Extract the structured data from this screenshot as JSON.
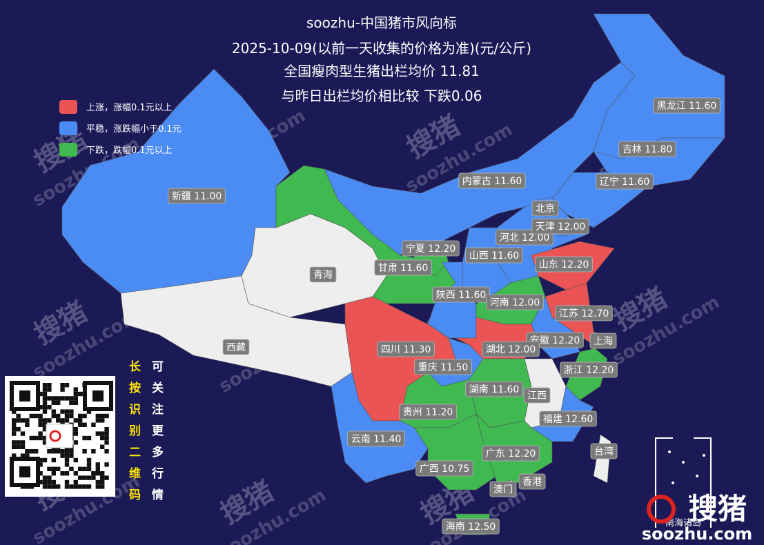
{
  "header": {
    "lines": [
      "soozhu-中国猪市风向标",
      "2025-10-09(以前一天收集的价格为准)(元/公斤)",
      "全国瘦肉型生猪出栏均价 11.81",
      "与昨日出栏均价相比较 下跌0.06"
    ]
  },
  "legend": {
    "items": [
      {
        "key": "up",
        "label": "上涨，涨幅0.1元以上",
        "color": "#ea5455"
      },
      {
        "key": "flat",
        "label": "平稳，涨跌幅小于0.1元",
        "color": "#4a8cf4"
      },
      {
        "key": "down",
        "label": "下跌，跌幅0.1元以上",
        "color": "#3fb950"
      }
    ]
  },
  "no_data_color": "#eeeeee",
  "provinces": [
    {
      "label": "新疆 11.00",
      "status": "flat"
    },
    {
      "label": "西藏",
      "status": "none"
    },
    {
      "label": "青海",
      "status": "none"
    },
    {
      "label": "甘肃 11.60",
      "status": "down"
    },
    {
      "label": "内蒙古 11.60",
      "status": "flat"
    },
    {
      "label": "黑龙江 11.60",
      "status": "flat"
    },
    {
      "label": "吉林 11.80",
      "status": "flat"
    },
    {
      "label": "辽宁 11.60",
      "status": "flat"
    },
    {
      "label": "河北 12.00",
      "status": "flat"
    },
    {
      "label": "北京",
      "status": "flat"
    },
    {
      "label": "天津 12.00",
      "status": "flat"
    },
    {
      "label": "山西 11.60",
      "status": "flat"
    },
    {
      "label": "宁夏 12.20",
      "status": "down"
    },
    {
      "label": "陕西 11.60",
      "status": "flat"
    },
    {
      "label": "山东 12.20",
      "status": "up"
    },
    {
      "label": "河南 12.00",
      "status": "down"
    },
    {
      "label": "江苏 12.70",
      "status": "up"
    },
    {
      "label": "安徽 12.20",
      "status": "flat"
    },
    {
      "label": "上海",
      "status": "up"
    },
    {
      "label": "浙江 12.20",
      "status": "down"
    },
    {
      "label": "湖北 12.00",
      "status": "up"
    },
    {
      "label": "四川 11.30",
      "status": "up"
    },
    {
      "label": "重庆 11.50",
      "status": "flat"
    },
    {
      "label": "湖南 11.60",
      "status": "down"
    },
    {
      "label": "江西",
      "status": "none"
    },
    {
      "label": "福建 12.60",
      "status": "flat"
    },
    {
      "label": "贵州 11.20",
      "status": "down"
    },
    {
      "label": "云南 11.40",
      "status": "flat"
    },
    {
      "label": "广西 10.75",
      "status": "down"
    },
    {
      "label": "广东 12.20",
      "status": "down"
    },
    {
      "label": "香港",
      "status": "none"
    },
    {
      "label": "澳门",
      "status": "none"
    },
    {
      "label": "海南 12.50",
      "status": "down"
    },
    {
      "label": "台湾",
      "status": "none"
    }
  ],
  "inset": {
    "label": "南海诸岛"
  },
  "qr": {
    "hint_left": "长按识别二维码",
    "hint_right": "可关注更多行情"
  },
  "watermark": {
    "site": "soozhu.com",
    "brand": "搜猪"
  }
}
